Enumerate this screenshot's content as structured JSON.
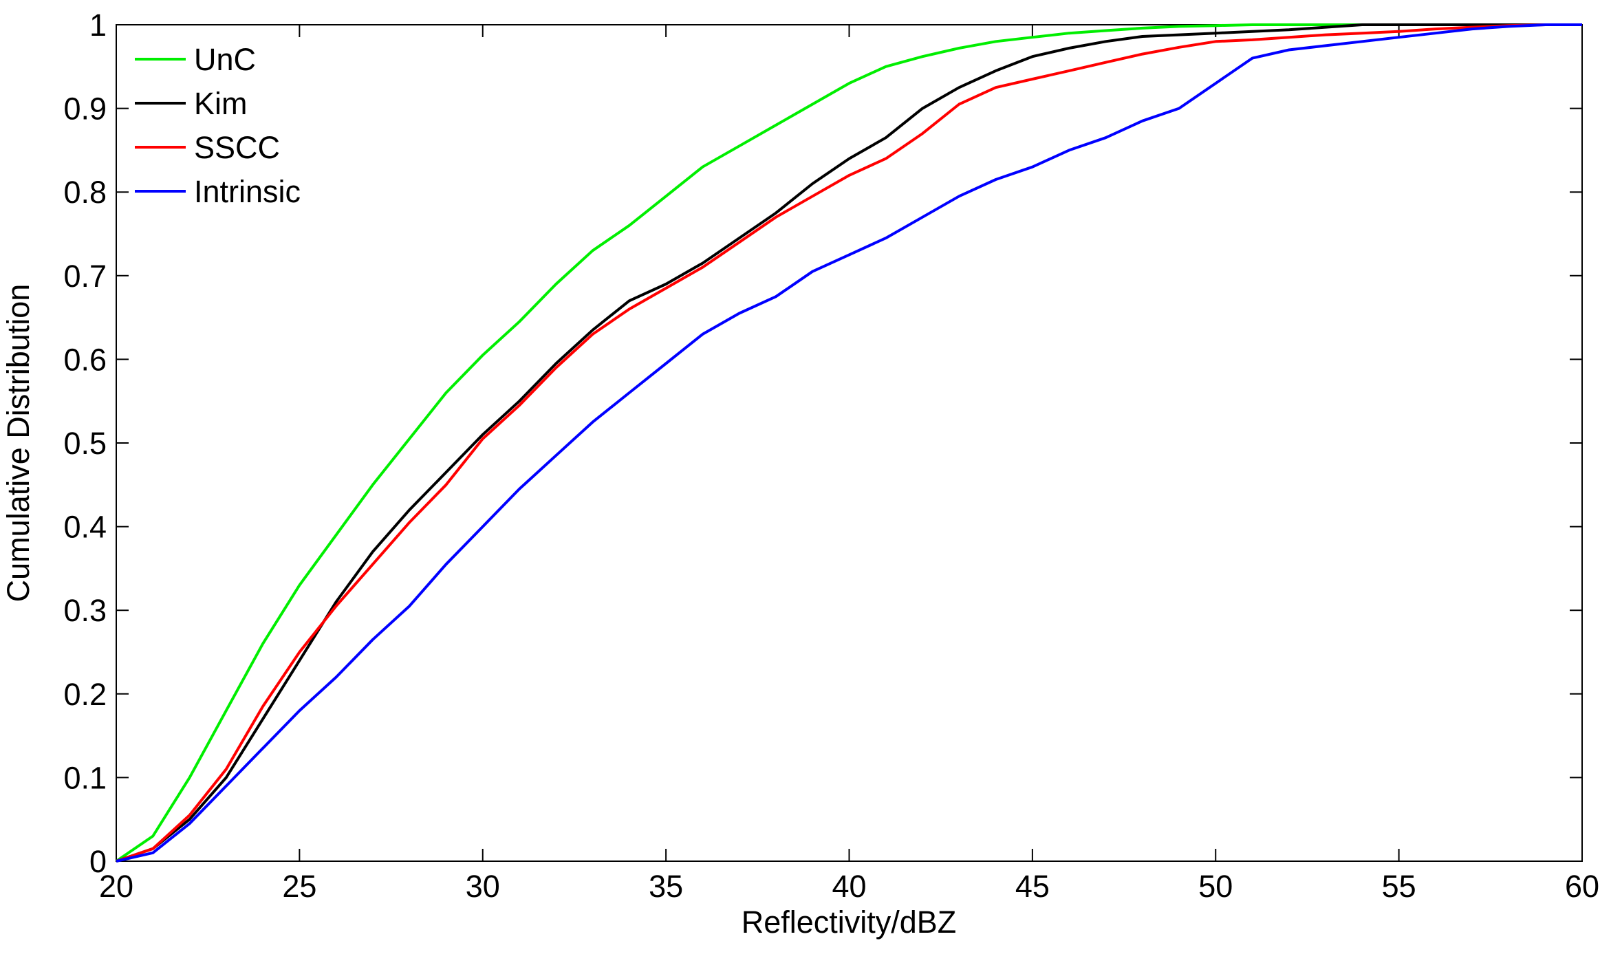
{
  "chart_data": {
    "type": "line",
    "x_label": "Reflectivity/dBZ",
    "y_label": "Cumulative Distribution",
    "x": [
      20,
      21,
      22,
      23,
      24,
      25,
      26,
      27,
      28,
      29,
      30,
      31,
      32,
      33,
      34,
      35,
      36,
      37,
      38,
      39,
      40,
      41,
      42,
      43,
      44,
      45,
      46,
      47,
      48,
      49,
      50,
      51,
      52,
      53,
      54,
      55,
      56,
      57,
      58,
      59,
      60
    ],
    "series": [
      {
        "name": "UnC",
        "color": "#00ee00",
        "values": [
          0,
          0.03,
          0.1,
          0.18,
          0.26,
          0.33,
          0.39,
          0.45,
          0.505,
          0.56,
          0.605,
          0.645,
          0.69,
          0.73,
          0.76,
          0.795,
          0.83,
          0.855,
          0.88,
          0.905,
          0.93,
          0.95,
          0.962,
          0.972,
          0.98,
          0.985,
          0.99,
          0.993,
          0.996,
          0.998,
          0.999,
          1,
          1,
          1,
          1,
          1,
          1,
          1,
          1,
          1,
          1
        ]
      },
      {
        "name": "Kim",
        "color": "#000000",
        "values": [
          0,
          0.015,
          0.05,
          0.1,
          0.17,
          0.24,
          0.31,
          0.37,
          0.42,
          0.465,
          0.51,
          0.55,
          0.595,
          0.635,
          0.67,
          0.69,
          0.715,
          0.745,
          0.775,
          0.81,
          0.84,
          0.865,
          0.9,
          0.925,
          0.945,
          0.962,
          0.972,
          0.98,
          0.986,
          0.988,
          0.99,
          0.992,
          0.994,
          0.997,
          1,
          1,
          1,
          1,
          1,
          1,
          1
        ]
      },
      {
        "name": "SSCC",
        "color": "#ff0000",
        "values": [
          0,
          0.015,
          0.055,
          0.11,
          0.185,
          0.25,
          0.305,
          0.355,
          0.405,
          0.45,
          0.505,
          0.545,
          0.59,
          0.63,
          0.66,
          0.685,
          0.71,
          0.74,
          0.77,
          0.795,
          0.82,
          0.84,
          0.87,
          0.905,
          0.925,
          0.935,
          0.945,
          0.955,
          0.965,
          0.973,
          0.98,
          0.982,
          0.985,
          0.988,
          0.99,
          0.992,
          0.995,
          0.997,
          0.999,
          1,
          1
        ]
      },
      {
        "name": "Intrinsic",
        "color": "#0000ff",
        "values": [
          0,
          0.01,
          0.045,
          0.09,
          0.135,
          0.18,
          0.22,
          0.265,
          0.305,
          0.355,
          0.4,
          0.445,
          0.485,
          0.525,
          0.56,
          0.595,
          0.63,
          0.655,
          0.675,
          0.705,
          0.725,
          0.745,
          0.77,
          0.795,
          0.815,
          0.83,
          0.85,
          0.865,
          0.885,
          0.9,
          0.93,
          0.96,
          0.97,
          0.975,
          0.98,
          0.985,
          0.99,
          0.995,
          0.998,
          1,
          1
        ]
      }
    ],
    "xlim": [
      20,
      60
    ],
    "xticks": [
      20,
      25,
      30,
      35,
      40,
      45,
      50,
      55,
      60
    ],
    "ylim": [
      0,
      1
    ],
    "yticks": [
      0,
      0.1,
      0.2,
      0.3,
      0.4,
      0.5,
      0.6,
      0.7,
      0.8,
      0.9,
      1
    ],
    "grid": false,
    "legend": "upper left"
  }
}
